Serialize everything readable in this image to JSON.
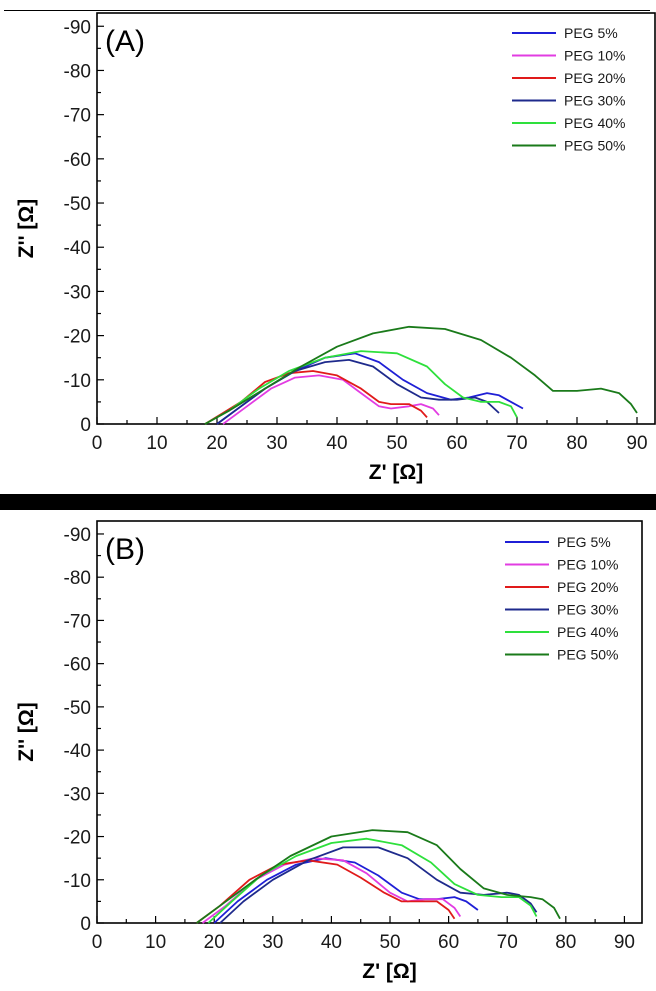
{
  "chart_data": [
    {
      "type": "line",
      "panel_label": "(A)",
      "xlabel": "Z' [Ω]",
      "ylabel": "Z'' [Ω]",
      "xlim": [
        0,
        93
      ],
      "ylim": [
        0,
        -93
      ],
      "x_ticks": [
        "0",
        "10",
        "20",
        "30",
        "40",
        "50",
        "60",
        "70",
        "80",
        "90"
      ],
      "y_ticks": [
        "0",
        "-10",
        "-20",
        "-30",
        "-40",
        "-50",
        "-60",
        "-70",
        "-80",
        "-90"
      ],
      "legend_position": "top-right",
      "grid": false,
      "series": [
        {
          "name": "PEG 5%",
          "color": "#1f1fd6",
          "points": [
            [
              20,
              0
            ],
            [
              24,
              -4
            ],
            [
              28,
              -8
            ],
            [
              33,
              -12
            ],
            [
              38,
              -15
            ],
            [
              43,
              -16
            ],
            [
              47,
              -14
            ],
            [
              51,
              -10
            ],
            [
              55,
              -7
            ],
            [
              59,
              -5.5
            ],
            [
              62,
              -6
            ],
            [
              65,
              -7
            ],
            [
              67,
              -6.5
            ],
            [
              69,
              -5
            ],
            [
              71,
              -3.5
            ]
          ]
        },
        {
          "name": "PEG 10%",
          "color": "#e23ce2",
          "points": [
            [
              21,
              0
            ],
            [
              25,
              -4
            ],
            [
              29,
              -8
            ],
            [
              33,
              -10.5
            ],
            [
              37,
              -11
            ],
            [
              41,
              -10
            ],
            [
              44,
              -7
            ],
            [
              47,
              -4
            ],
            [
              49,
              -3.5
            ],
            [
              52,
              -4
            ],
            [
              54,
              -4.5
            ],
            [
              56,
              -3.5
            ],
            [
              57,
              -2
            ]
          ]
        },
        {
          "name": "PEG 20%",
          "color": "#e01a1a",
          "points": [
            [
              18,
              0
            ],
            [
              21,
              -2.5
            ],
            [
              24,
              -5
            ],
            [
              28,
              -9.5
            ],
            [
              32,
              -11.5
            ],
            [
              36,
              -12
            ],
            [
              40,
              -11
            ],
            [
              44,
              -8
            ],
            [
              47,
              -5
            ],
            [
              49,
              -4.5
            ],
            [
              52,
              -4.5
            ],
            [
              54,
              -3
            ],
            [
              55,
              -1.5
            ]
          ]
        },
        {
          "name": "PEG 30%",
          "color": "#1e2a8c",
          "points": [
            [
              20,
              0
            ],
            [
              24,
              -4
            ],
            [
              28,
              -8
            ],
            [
              33,
              -12
            ],
            [
              38,
              -14
            ],
            [
              42,
              -14.5
            ],
            [
              46,
              -13
            ],
            [
              50,
              -9
            ],
            [
              54,
              -6
            ],
            [
              57,
              -5.5
            ],
            [
              60,
              -5.5
            ],
            [
              63,
              -6
            ],
            [
              65,
              -5
            ],
            [
              67,
              -2.5
            ]
          ]
        },
        {
          "name": "PEG 40%",
          "color": "#2ee03c",
          "points": [
            [
              18,
              0
            ],
            [
              22,
              -3
            ],
            [
              27,
              -8
            ],
            [
              32,
              -12
            ],
            [
              38,
              -15
            ],
            [
              44,
              -16.5
            ],
            [
              50,
              -16
            ],
            [
              55,
              -13
            ],
            [
              58,
              -9
            ],
            [
              61,
              -6
            ],
            [
              64,
              -5
            ],
            [
              67,
              -5
            ],
            [
              69,
              -4
            ],
            [
              70,
              -1.5
            ]
          ]
        },
        {
          "name": "PEG 50%",
          "color": "#1a7a1a",
          "points": [
            [
              18,
              0
            ],
            [
              22,
              -3
            ],
            [
              28,
              -8
            ],
            [
              34,
              -13
            ],
            [
              40,
              -17.5
            ],
            [
              46,
              -20.5
            ],
            [
              52,
              -22
            ],
            [
              58,
              -21.5
            ],
            [
              64,
              -19
            ],
            [
              69,
              -15
            ],
            [
              73,
              -11
            ],
            [
              76,
              -7.5
            ],
            [
              80,
              -7.5
            ],
            [
              84,
              -8
            ],
            [
              87,
              -7
            ],
            [
              89,
              -4.5
            ],
            [
              90,
              -2.5
            ]
          ]
        }
      ]
    },
    {
      "type": "line",
      "panel_label": "(B)",
      "xlabel": "Z' [Ω]",
      "ylabel": "Z'' [Ω]",
      "xlim": [
        0,
        93
      ],
      "ylim": [
        0,
        -93
      ],
      "x_ticks": [
        "0",
        "10",
        "20",
        "30",
        "40",
        "50",
        "60",
        "70",
        "80",
        "90"
      ],
      "y_ticks": [
        "0",
        "-10",
        "-20",
        "-30",
        "-40",
        "-50",
        "-60",
        "-70",
        "-80",
        "-90"
      ],
      "legend_position": "top-right",
      "grid": false,
      "series": [
        {
          "name": "PEG 5%",
          "color": "#1f1fd6",
          "points": [
            [
              20,
              0
            ],
            [
              24,
              -5
            ],
            [
              29,
              -10
            ],
            [
              34,
              -13.5
            ],
            [
              39,
              -15
            ],
            [
              44,
              -14
            ],
            [
              48,
              -11
            ],
            [
              52,
              -7
            ],
            [
              55,
              -5.5
            ],
            [
              58,
              -5.5
            ],
            [
              61,
              -6
            ],
            [
              63,
              -5
            ],
            [
              65,
              -3
            ]
          ]
        },
        {
          "name": "PEG 10%",
          "color": "#e23ce2",
          "points": [
            [
              18,
              0
            ],
            [
              22,
              -4
            ],
            [
              27,
              -10
            ],
            [
              32,
              -13.5
            ],
            [
              37,
              -15
            ],
            [
              42,
              -14.5
            ],
            [
              46,
              -11.5
            ],
            [
              50,
              -7
            ],
            [
              53,
              -5
            ],
            [
              56,
              -5.5
            ],
            [
              59,
              -5.5
            ],
            [
              61,
              -3.5
            ],
            [
              62,
              -1.5
            ]
          ]
        },
        {
          "name": "PEG 20%",
          "color": "#e01a1a",
          "points": [
            [
              17,
              0
            ],
            [
              21,
              -4
            ],
            [
              26,
              -10
            ],
            [
              31,
              -13.5
            ],
            [
              36,
              -14.5
            ],
            [
              41,
              -13.5
            ],
            [
              45,
              -10.5
            ],
            [
              49,
              -7
            ],
            [
              52,
              -5
            ],
            [
              55,
              -5
            ],
            [
              58,
              -5
            ],
            [
              60,
              -3
            ],
            [
              61,
              -1
            ]
          ]
        },
        {
          "name": "PEG 30%",
          "color": "#1e2a8c",
          "points": [
            [
              21,
              0
            ],
            [
              25,
              -5
            ],
            [
              30,
              -10
            ],
            [
              36,
              -14.5
            ],
            [
              42,
              -17.5
            ],
            [
              48,
              -17.5
            ],
            [
              53,
              -15
            ],
            [
              58,
              -10
            ],
            [
              62,
              -7
            ],
            [
              66,
              -6.5
            ],
            [
              70,
              -7
            ],
            [
              72,
              -6.5
            ],
            [
              74,
              -4.5
            ],
            [
              75,
              -2.5
            ]
          ]
        },
        {
          "name": "PEG 40%",
          "color": "#2ee03c",
          "points": [
            [
              19,
              0
            ],
            [
              23,
              -5
            ],
            [
              28,
              -11
            ],
            [
              34,
              -15.5
            ],
            [
              40,
              -18.5
            ],
            [
              46,
              -19.5
            ],
            [
              52,
              -18
            ],
            [
              57,
              -14
            ],
            [
              61,
              -9
            ],
            [
              65,
              -6.5
            ],
            [
              69,
              -6
            ],
            [
              72,
              -6
            ],
            [
              74,
              -4
            ],
            [
              75,
              -1.5
            ]
          ]
        },
        {
          "name": "PEG 50%",
          "color": "#1a7a1a",
          "points": [
            [
              17,
              0
            ],
            [
              21,
              -4
            ],
            [
              27,
              -10
            ],
            [
              33,
              -15.5
            ],
            [
              40,
              -20
            ],
            [
              47,
              -21.5
            ],
            [
              53,
              -21
            ],
            [
              58,
              -18
            ],
            [
              62,
              -12.5
            ],
            [
              66,
              -8
            ],
            [
              70,
              -6.5
            ],
            [
              74,
              -6
            ],
            [
              76,
              -5.5
            ],
            [
              78,
              -3.5
            ],
            [
              79,
              -1
            ]
          ]
        }
      ]
    }
  ]
}
